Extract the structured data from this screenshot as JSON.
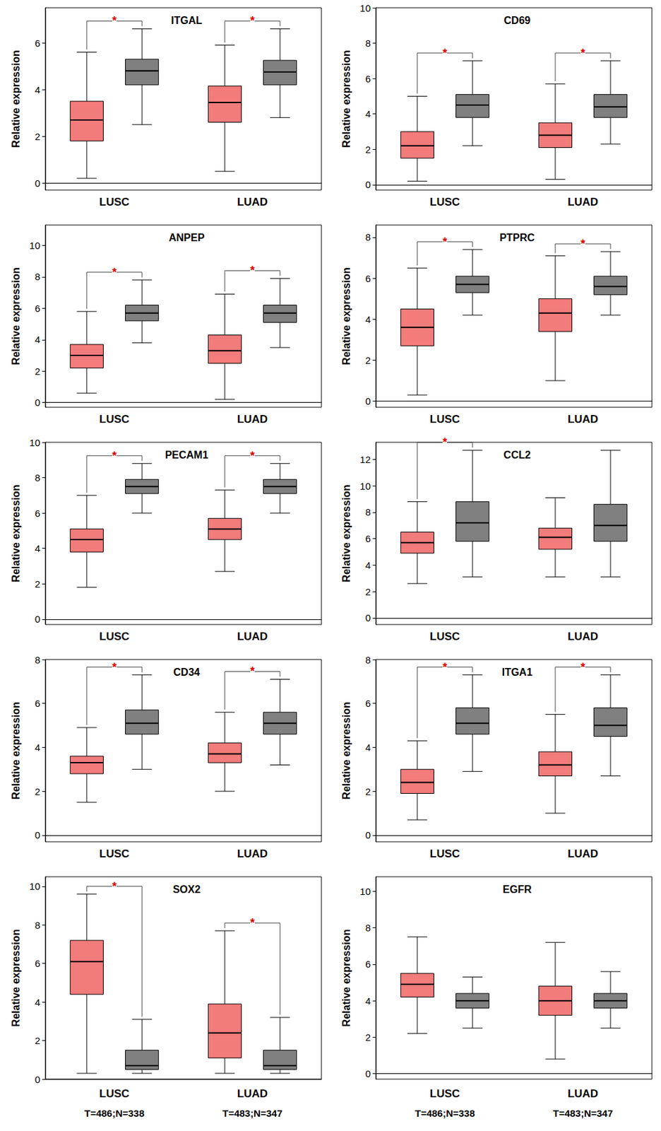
{
  "chart_data": [
    {
      "type": "boxplot",
      "title": "ITGAL",
      "ylabel": "Relative expression",
      "categories": [
        "LUSC",
        "LUAD"
      ],
      "series": [
        {
          "color": "#F27B7B",
          "values": [
            [
              0.2,
              1.8,
              2.7,
              3.5,
              5.6
            ],
            [
              0.5,
              2.6,
              3.45,
              4.15,
              5.9
            ]
          ]
        },
        {
          "color": "#808080",
          "values": [
            [
              2.5,
              4.2,
              4.8,
              5.3,
              6.6
            ],
            [
              2.8,
              4.2,
              4.75,
              5.25,
              6.6
            ]
          ]
        }
      ],
      "ylim": [
        -0.3,
        7.5
      ],
      "yticks": [
        0,
        2,
        4,
        6
      ],
      "grid": false,
      "annotations": [
        {
          "category": "LUSC",
          "text": "*"
        },
        {
          "category": "LUAD",
          "text": "*"
        }
      ]
    },
    {
      "type": "boxplot",
      "title": "CD69",
      "ylabel": "Relative expression",
      "categories": [
        "LUSC",
        "LUAD"
      ],
      "series": [
        {
          "color": "#F27B7B",
          "values": [
            [
              0.2,
              1.5,
              2.2,
              3.0,
              5.0
            ],
            [
              0.3,
              2.1,
              2.8,
              3.5,
              5.7
            ]
          ]
        },
        {
          "color": "#808080",
          "values": [
            [
              2.2,
              3.8,
              4.5,
              5.1,
              7.0
            ],
            [
              2.3,
              3.8,
              4.4,
              5.1,
              7.0
            ]
          ]
        }
      ],
      "ylim": [
        -0.3,
        10
      ],
      "yticks": [
        0,
        2,
        4,
        6,
        8,
        10
      ],
      "grid": false,
      "annotations": [
        {
          "category": "LUSC",
          "text": "*"
        },
        {
          "category": "LUAD",
          "text": "*"
        }
      ]
    },
    {
      "type": "boxplot",
      "title": "ANPEP",
      "ylabel": "Relative expression",
      "categories": [
        "LUSC",
        "LUAD"
      ],
      "series": [
        {
          "color": "#F27B7B",
          "values": [
            [
              0.6,
              2.2,
              3.0,
              3.7,
              5.8
            ],
            [
              0.2,
              2.5,
              3.3,
              4.3,
              6.9
            ]
          ]
        },
        {
          "color": "#808080",
          "values": [
            [
              3.8,
              5.2,
              5.7,
              6.2,
              7.8
            ],
            [
              3.5,
              5.1,
              5.7,
              6.2,
              7.9
            ]
          ]
        }
      ],
      "ylim": [
        -0.3,
        11.3
      ],
      "yticks": [
        0,
        2,
        4,
        6,
        8,
        10
      ],
      "grid": false,
      "annotations": [
        {
          "category": "LUSC",
          "text": "*"
        },
        {
          "category": "LUAD",
          "text": "*"
        }
      ]
    },
    {
      "type": "boxplot",
      "title": "PTPRC",
      "ylabel": "Relative expression",
      "categories": [
        "LUSC",
        "LUAD"
      ],
      "series": [
        {
          "color": "#F27B7B",
          "values": [
            [
              0.3,
              2.7,
              3.6,
              4.5,
              6.5
            ],
            [
              1.0,
              3.4,
              4.3,
              5.0,
              7.1
            ]
          ]
        },
        {
          "color": "#808080",
          "values": [
            [
              4.2,
              5.3,
              5.7,
              6.1,
              7.4
            ],
            [
              4.2,
              5.2,
              5.6,
              6.1,
              7.3
            ]
          ]
        }
      ],
      "ylim": [
        -0.3,
        8.6
      ],
      "yticks": [
        0,
        2,
        4,
        6,
        8
      ],
      "grid": false,
      "annotations": [
        {
          "category": "LUSC",
          "text": "*"
        },
        {
          "category": "LUAD",
          "text": "*"
        }
      ]
    },
    {
      "type": "boxplot",
      "title": "PECAM1",
      "ylabel": "Relative expression",
      "categories": [
        "LUSC",
        "LUAD"
      ],
      "series": [
        {
          "color": "#F27B7B",
          "values": [
            [
              1.8,
              3.8,
              4.5,
              5.1,
              7.0
            ],
            [
              2.7,
              4.5,
              5.1,
              5.7,
              7.3
            ]
          ]
        },
        {
          "color": "#808080",
          "values": [
            [
              6.0,
              7.1,
              7.5,
              7.9,
              8.8
            ],
            [
              6.0,
              7.1,
              7.5,
              7.9,
              8.8
            ]
          ]
        }
      ],
      "ylim": [
        -0.3,
        10
      ],
      "yticks": [
        0,
        2,
        4,
        6,
        8,
        10
      ],
      "grid": false,
      "annotations": [
        {
          "category": "LUSC",
          "text": "*"
        },
        {
          "category": "LUAD",
          "text": "*"
        }
      ]
    },
    {
      "type": "boxplot",
      "title": "CCL2",
      "ylabel": "Relative expression",
      "categories": [
        "LUSC",
        "LUAD"
      ],
      "series": [
        {
          "color": "#F27B7B",
          "values": [
            [
              2.6,
              4.9,
              5.7,
              6.5,
              8.8
            ],
            [
              3.1,
              5.2,
              6.1,
              6.8,
              9.1
            ]
          ]
        },
        {
          "color": "#808080",
          "values": [
            [
              3.1,
              5.8,
              7.2,
              8.8,
              12.7
            ],
            [
              3.1,
              5.8,
              7.0,
              8.6,
              12.7
            ]
          ]
        }
      ],
      "ylim": [
        -0.5,
        13.3
      ],
      "yticks": [
        0,
        2,
        4,
        6,
        8,
        10,
        12
      ],
      "grid": false,
      "annotations": [
        {
          "category": "LUSC",
          "text": "*"
        }
      ]
    },
    {
      "type": "boxplot",
      "title": "CD34",
      "ylabel": "Relative expression",
      "categories": [
        "LUSC",
        "LUAD"
      ],
      "series": [
        {
          "color": "#F27B7B",
          "values": [
            [
              1.5,
              2.8,
              3.3,
              3.6,
              4.9
            ],
            [
              2.0,
              3.3,
              3.7,
              4.2,
              5.6
            ]
          ]
        },
        {
          "color": "#808080",
          "values": [
            [
              3.0,
              4.6,
              5.1,
              5.7,
              7.3
            ],
            [
              3.2,
              4.6,
              5.1,
              5.6,
              7.1
            ]
          ]
        }
      ],
      "ylim": [
        -0.3,
        8
      ],
      "yticks": [
        0,
        2,
        4,
        6,
        8
      ],
      "grid": false,
      "annotations": [
        {
          "category": "LUSC",
          "text": "*"
        },
        {
          "category": "LUAD",
          "text": "*"
        }
      ]
    },
    {
      "type": "boxplot",
      "title": "ITGA1",
      "ylabel": "Relative expression",
      "categories": [
        "LUSC",
        "LUAD"
      ],
      "series": [
        {
          "color": "#F27B7B",
          "values": [
            [
              0.7,
              1.9,
              2.4,
              3.0,
              4.3
            ],
            [
              1.0,
              2.7,
              3.2,
              3.8,
              5.5
            ]
          ]
        },
        {
          "color": "#808080",
          "values": [
            [
              2.9,
              4.6,
              5.1,
              5.8,
              7.3
            ],
            [
              2.7,
              4.5,
              5.0,
              5.8,
              7.3
            ]
          ]
        }
      ],
      "ylim": [
        -0.3,
        8
      ],
      "yticks": [
        0,
        2,
        4,
        6,
        8
      ],
      "grid": false,
      "annotations": [
        {
          "category": "LUSC",
          "text": "*"
        },
        {
          "category": "LUAD",
          "text": "*"
        }
      ]
    },
    {
      "type": "boxplot",
      "title": "SOX2",
      "ylabel": "Relative expression",
      "categories": [
        "LUSC",
        "LUAD"
      ],
      "series": [
        {
          "color": "#F27B7B",
          "values": [
            [
              0.3,
              4.4,
              6.1,
              7.2,
              9.6
            ],
            [
              0.3,
              1.1,
              2.4,
              3.9,
              7.7
            ]
          ]
        },
        {
          "color": "#808080",
          "values": [
            [
              0.3,
              0.5,
              0.7,
              1.5,
              3.1
            ],
            [
              0.3,
              0.5,
              0.7,
              1.5,
              3.2
            ]
          ]
        }
      ],
      "ylim": [
        0,
        10.5
      ],
      "yticks": [
        0,
        2,
        4,
        6,
        8,
        10
      ],
      "grid": false,
      "annotations": [
        {
          "category": "LUSC",
          "text": "*"
        },
        {
          "category": "LUAD",
          "text": "*"
        }
      ],
      "category_notes": [
        "T=486;N=338",
        "T=483;N=347"
      ]
    },
    {
      "type": "boxplot",
      "title": "EGFR",
      "ylabel": "Relative expression",
      "categories": [
        "LUSC",
        "LUAD"
      ],
      "series": [
        {
          "color": "#F27B7B",
          "values": [
            [
              2.2,
              4.2,
              4.9,
              5.5,
              7.5
            ],
            [
              0.8,
              3.2,
              4.0,
              4.8,
              7.2
            ]
          ]
        },
        {
          "color": "#808080",
          "values": [
            [
              2.5,
              3.6,
              4.0,
              4.4,
              5.3
            ],
            [
              2.5,
              3.6,
              4.0,
              4.4,
              5.6
            ]
          ]
        }
      ],
      "ylim": [
        -0.3,
        10.8
      ],
      "yticks": [
        0,
        2,
        4,
        6,
        8,
        10
      ],
      "grid": false,
      "annotations": [],
      "category_notes": [
        "T=486;N=338",
        "T=483;N=347"
      ]
    }
  ]
}
